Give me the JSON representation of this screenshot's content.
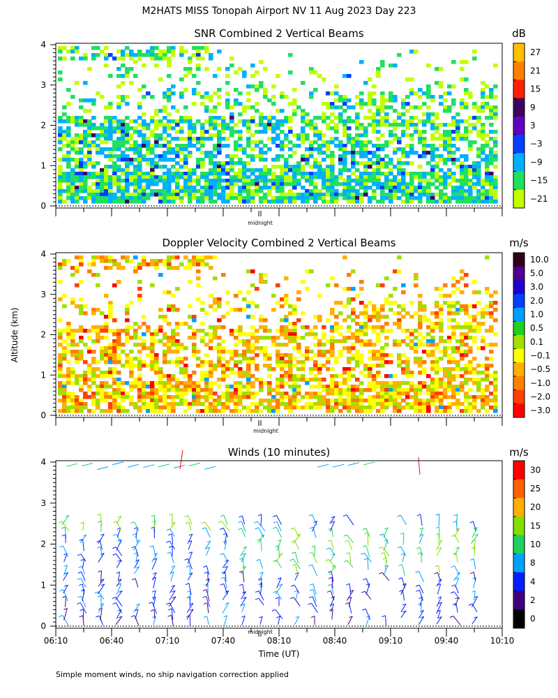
{
  "figure": {
    "title": "M2HATS MISS Tonopah Airport NV  11 Aug 2023 Day 223",
    "ylabel": "Altitude (km)",
    "xlabel": "Time (UT)",
    "footnote": "Simple moment winds, no ship navigation correction applied",
    "midnight_label": "midnight"
  },
  "chart_data": [
    {
      "type": "heatmap",
      "title": "SNR Combined 2 Vertical Beams",
      "units": "dB",
      "ylim": [
        0,
        4
      ],
      "yticks": [
        "0",
        "1",
        "2",
        "3",
        "4"
      ],
      "x_range": [
        "06:10",
        "10:10"
      ],
      "colorbar": {
        "labels": [
          "27",
          "21",
          "15",
          "9",
          "3",
          "−3",
          "−9",
          "−15",
          "−21"
        ],
        "colors": [
          "#ffc000",
          "#ff8000",
          "#ff2000",
          "#400060",
          "#6000c0",
          "#0040ff",
          "#00b0ff",
          "#20e060",
          "#c0ff00"
        ]
      }
    },
    {
      "type": "heatmap",
      "title": "Doppler Velocity Combined 2 Vertical Beams",
      "units": "m/s",
      "ylim": [
        0,
        4
      ],
      "yticks": [
        "0",
        "1",
        "2",
        "3",
        "4"
      ],
      "x_range": [
        "06:10",
        "10:10"
      ],
      "colorbar": {
        "labels": [
          "10.0",
          "5.0",
          "3.0",
          "2.0",
          "1.0",
          "0.5",
          "0.1",
          "−0.1",
          "−0.5",
          "−1.0",
          "−2.0",
          "−3.0"
        ],
        "colors": [
          "#300018",
          "#500090",
          "#2000d0",
          "#0040ff",
          "#00a0ff",
          "#20d020",
          "#a0e000",
          "#ffff00",
          "#ffb000",
          "#ff8000",
          "#ff4000",
          "#ff0000"
        ]
      }
    },
    {
      "type": "scatter",
      "title": "Winds (10 minutes)",
      "units": "m/s",
      "ylim": [
        0,
        4
      ],
      "yticks": [
        "0",
        "1",
        "2",
        "3",
        "4"
      ],
      "xticks": [
        "06:10",
        "06:40",
        "07:10",
        "07:40",
        "08:10",
        "08:40",
        "09:10",
        "09:40",
        "10:10"
      ],
      "colorbar": {
        "labels": [
          "30",
          "25",
          "20",
          "15",
          "10",
          "8",
          "4",
          "2",
          "0"
        ],
        "colors": [
          "#ff0000",
          "#ff6000",
          "#ffb000",
          "#80e000",
          "#20d060",
          "#00a0ff",
          "#0020ff",
          "#400080",
          "#000000"
        ]
      }
    }
  ]
}
